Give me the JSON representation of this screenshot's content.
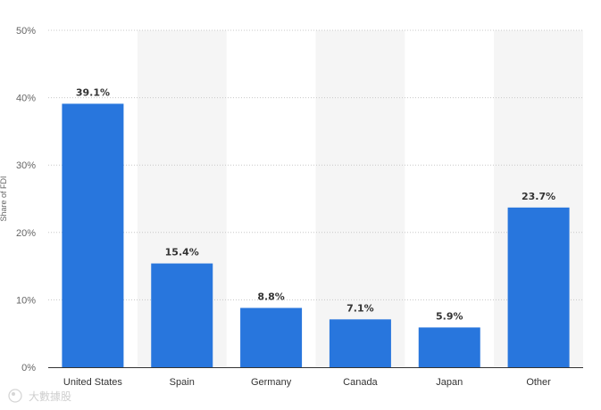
{
  "chart_data": {
    "type": "bar",
    "title": "",
    "xlabel": "",
    "ylabel": "Share of FDI",
    "categories": [
      "United States",
      "Spain",
      "Germany",
      "Canada",
      "Japan",
      "Other"
    ],
    "values": [
      39.1,
      15.4,
      8.8,
      7.1,
      5.9,
      23.7
    ],
    "data_labels": [
      "39.1%",
      "15.4%",
      "8.8%",
      "7.1%",
      "5.9%",
      "23.7%"
    ],
    "ylim": [
      0,
      50
    ],
    "yticks": [
      0,
      10,
      20,
      30,
      40,
      50
    ],
    "ytick_labels": [
      "0%",
      "10%",
      "20%",
      "30%",
      "40%",
      "50%"
    ],
    "grid": true,
    "bar_color": "#2876dd",
    "alt_band_color": "#f5f5f5",
    "legend": "none"
  },
  "watermark": {
    "text": "大數據股"
  }
}
